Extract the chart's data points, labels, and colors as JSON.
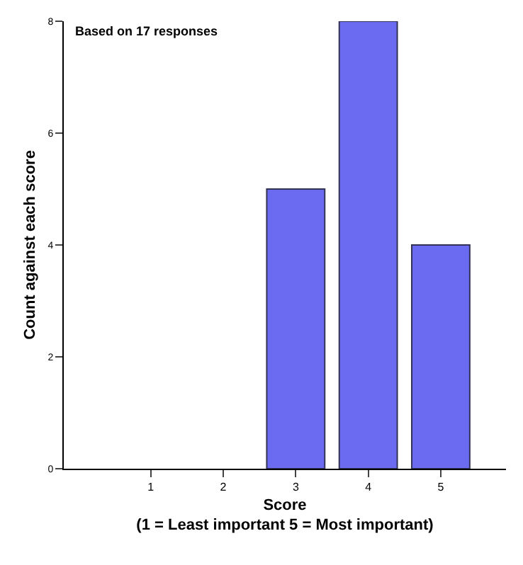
{
  "chart_data": {
    "type": "bar",
    "categories": [
      "1",
      "2",
      "3",
      "4",
      "5"
    ],
    "values": [
      0,
      0,
      5,
      8,
      4
    ],
    "color": "#6b6bf2",
    "xlabel": "Score\n(1 = Least important 5 = Most important)",
    "ylabel": "Count against each score",
    "ylim": [
      0,
      8
    ],
    "yticks": [
      0,
      2,
      4,
      6,
      8
    ],
    "annotations": [
      "Based on 17 responses"
    ]
  }
}
